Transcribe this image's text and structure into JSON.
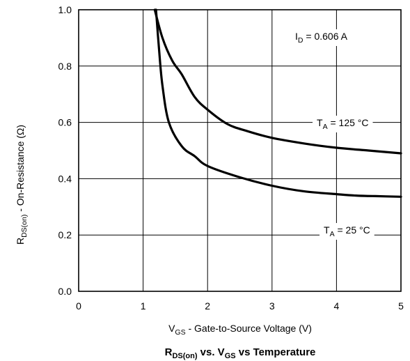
{
  "chart_data": {
    "type": "line",
    "title": {
      "pre": "R",
      "sub1": "DS(on)",
      "mid": " vs. V",
      "sub2": "GS",
      "post": " vs Temperature"
    },
    "xlabel": {
      "pre": "V",
      "sub": "GS",
      "post": " - Gate-to-Source Voltage (V)"
    },
    "ylabel": {
      "pre": "R",
      "sub": "DS(on)",
      "post": " - On-Resistance (Ω)"
    },
    "xlim": [
      0,
      5
    ],
    "ylim": [
      0,
      1.0
    ],
    "x_ticks": [
      "0",
      "1",
      "2",
      "3",
      "4",
      "5"
    ],
    "y_ticks": [
      "0.0",
      "0.2",
      "0.4",
      "0.6",
      "0.8",
      "1.0"
    ],
    "grid": true,
    "annotation": {
      "pre": "I",
      "sub": "D",
      "post": " = 0.606 A"
    },
    "series": [
      {
        "label": {
          "pre": "T",
          "sub": "A",
          "post": " = 125 °C"
        },
        "x": [
          1.18,
          1.3,
          1.45,
          1.6,
          1.8,
          2.0,
          2.3,
          2.6,
          3.0,
          3.5,
          4.0,
          4.5,
          5.0
        ],
        "y": [
          1.0,
          0.9,
          0.82,
          0.77,
          0.69,
          0.645,
          0.595,
          0.57,
          0.545,
          0.525,
          0.51,
          0.5,
          0.49
        ]
      },
      {
        "label": {
          "pre": "T",
          "sub": "A",
          "post": " = 25 °C"
        },
        "x": [
          1.2,
          1.25,
          1.3,
          1.4,
          1.6,
          1.8,
          2.0,
          2.5,
          3.0,
          3.5,
          4.0,
          4.3,
          4.6,
          5.0
        ],
        "y": [
          1.0,
          0.85,
          0.73,
          0.6,
          0.515,
          0.48,
          0.445,
          0.405,
          0.375,
          0.355,
          0.345,
          0.34,
          0.338,
          0.336
        ]
      }
    ]
  }
}
